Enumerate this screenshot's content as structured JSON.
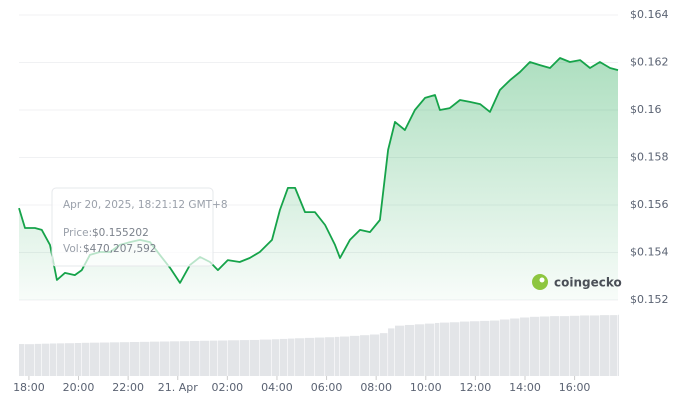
{
  "chart_data": {
    "type": "area",
    "x": [
      -0.4,
      -0.16,
      0.24,
      0.52,
      0.85,
      1.13,
      1.45,
      1.85,
      2.13,
      2.46,
      2.86,
      3.27,
      3.67,
      4.07,
      4.48,
      4.88,
      5.28,
      5.69,
      6.09,
      6.49,
      6.9,
      7.3,
      7.62,
      8.02,
      8.5,
      8.9,
      9.31,
      9.8,
      10.12,
      10.44,
      10.73,
      11.13,
      11.53,
      11.94,
      12.34,
      12.54,
      12.94,
      13.35,
      13.75,
      14.15,
      14.48,
      14.76,
      15.16,
      15.56,
      15.97,
      16.37,
      16.57,
      16.97,
      17.38,
      17.78,
      18.19,
      18.59,
      18.99,
      19.4,
      19.8,
      20.2,
      20.6,
      21.01,
      21.41,
      21.81,
      22.22,
      22.62,
      23.02,
      23.43,
      23.75
    ],
    "values": [
      0.15587,
      0.15503,
      0.15503,
      0.15495,
      0.15432,
      0.15284,
      0.15314,
      0.15305,
      0.15326,
      0.1539,
      0.15402,
      0.15402,
      0.15432,
      0.15444,
      0.15453,
      0.15444,
      0.1539,
      0.15335,
      0.15272,
      0.15347,
      0.15381,
      0.1536,
      0.15326,
      0.15368,
      0.1536,
      0.15377,
      0.15402,
      0.15453,
      0.15579,
      0.15672,
      0.15672,
      0.1557,
      0.1557,
      0.15516,
      0.15432,
      0.15377,
      0.15453,
      0.15495,
      0.15486,
      0.15537,
      0.15832,
      0.1595,
      0.15916,
      0.16,
      0.16051,
      0.16063,
      0.16,
      0.16008,
      0.16042,
      0.16034,
      0.16025,
      0.15992,
      0.16084,
      0.16126,
      0.1616,
      0.16202,
      0.16189,
      0.16177,
      0.16219,
      0.16202,
      0.1621,
      0.16177,
      0.16202,
      0.16177,
      0.16168
    ],
    "volume": [
      470000000,
      468000000,
      472000000,
      475000000,
      478000000,
      480000000,
      482000000,
      485000000,
      488000000,
      490000000,
      492000000,
      495000000,
      497000000,
      500000000,
      502000000,
      505000000,
      507000000,
      510000000,
      512000000,
      515000000,
      518000000,
      520000000,
      522000000,
      525000000,
      528000000,
      530000000,
      535000000,
      540000000,
      545000000,
      550000000,
      555000000,
      560000000,
      565000000,
      570000000,
      575000000,
      580000000,
      590000000,
      600000000,
      610000000,
      630000000,
      700000000,
      740000000,
      750000000,
      760000000,
      770000000,
      780000000,
      785000000,
      790000000,
      800000000,
      805000000,
      810000000,
      815000000,
      830000000,
      845000000,
      860000000,
      870000000,
      875000000,
      880000000,
      880000000,
      885000000,
      890000000,
      890000000,
      895000000,
      895000000,
      900000000
    ],
    "color": "#16a34a",
    "volume_color": "#e3e5e8",
    "xlim": [
      -0.4,
      23.75
    ],
    "xticks": [
      {
        "value": 0,
        "label": "18:00"
      },
      {
        "value": 2,
        "label": "20:00"
      },
      {
        "value": 4,
        "label": "22:00"
      },
      {
        "value": 6,
        "label": "21. Apr"
      },
      {
        "value": 8,
        "label": "02:00"
      },
      {
        "value": 10,
        "label": "04:00"
      },
      {
        "value": 12,
        "label": "06:00"
      },
      {
        "value": 14,
        "label": "08:00"
      },
      {
        "value": 16,
        "label": "10:00"
      },
      {
        "value": 18,
        "label": "12:00"
      },
      {
        "value": 20,
        "label": "14:00"
      },
      {
        "value": 22,
        "label": "16:00"
      }
    ],
    "ylim": [
      0.152,
      0.164
    ],
    "yticks": [
      {
        "value": 0.152,
        "label": "$0.152"
      },
      {
        "value": 0.154,
        "label": "$0.154"
      },
      {
        "value": 0.156,
        "label": "$0.156"
      },
      {
        "value": 0.158,
        "label": "$0.158"
      },
      {
        "value": 0.16,
        "label": "$0.16"
      },
      {
        "value": 0.162,
        "label": "$0.162"
      },
      {
        "value": 0.164,
        "label": "$0.164"
      }
    ],
    "grid": true,
    "tooltip": {
      "date": "Apr 20, 2025, 18:21:12 GMT+8",
      "price_label": "Price:",
      "price": "$0.155202",
      "vol_label": "Vol:",
      "vol": "$470,207,592"
    },
    "brand": "coingecko"
  }
}
